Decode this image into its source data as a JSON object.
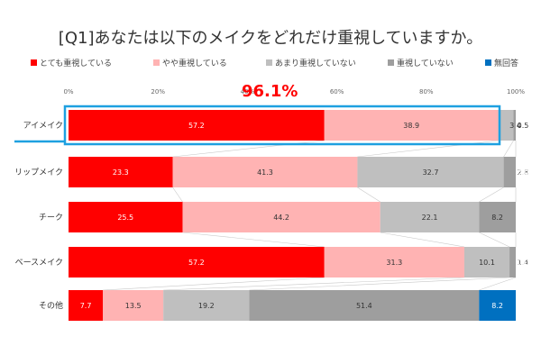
{
  "chart_data": {
    "type": "bar",
    "orientation": "horizontal",
    "stacked": true,
    "title": "[Q1]あなたは以下のメイクをどれだけ重視していますか。",
    "categories": [
      "アイメイク",
      "リップメイク",
      "チーク",
      "ベースメイク",
      "その他"
    ],
    "series": [
      {
        "name": "とても重視している",
        "color": "#ff0000",
        "values": [
          57.2,
          23.3,
          25.5,
          57.2,
          7.7
        ]
      },
      {
        "name": "やや重視している",
        "color": "#ffb3b3",
        "values": [
          38.9,
          41.3,
          44.2,
          31.3,
          13.5
        ]
      },
      {
        "name": "あまり重視していない",
        "color": "#bfbfbf",
        "values": [
          3.4,
          32.7,
          22.1,
          10.1,
          19.2
        ]
      },
      {
        "name": "重視していない",
        "color": "#9e9e9e",
        "values": [
          0.5,
          2.8,
          8.2,
          1.4,
          51.4
        ]
      },
      {
        "name": "無回答",
        "color": "#0070c0",
        "values": [
          0.0,
          0.0,
          0.0,
          0.0,
          8.2
        ]
      }
    ],
    "data_labels": [
      [
        "57.2",
        "38.9",
        "3.4",
        "0.5",
        ""
      ],
      [
        "23.3",
        "41.3",
        "32.7",
        "2.8",
        "0.0"
      ],
      [
        "25.5",
        "44.2",
        "22.1",
        "8.2",
        "0.0"
      ],
      [
        "57.2",
        "31.3",
        "10.1",
        "1.4",
        "0.0"
      ],
      [
        "7.7",
        "13.5",
        "19.2",
        "51.4",
        "8.2"
      ]
    ],
    "x_ticks": [
      "0%",
      "20%",
      "40%",
      "60%",
      "80%",
      "100%"
    ],
    "xlim": [
      0,
      100
    ],
    "legend_position": "top",
    "highlight": {
      "category": "アイメイク",
      "label": "96.1%",
      "color": "#1ea0e0",
      "label_color": "#ff0000"
    },
    "grid": false
  }
}
